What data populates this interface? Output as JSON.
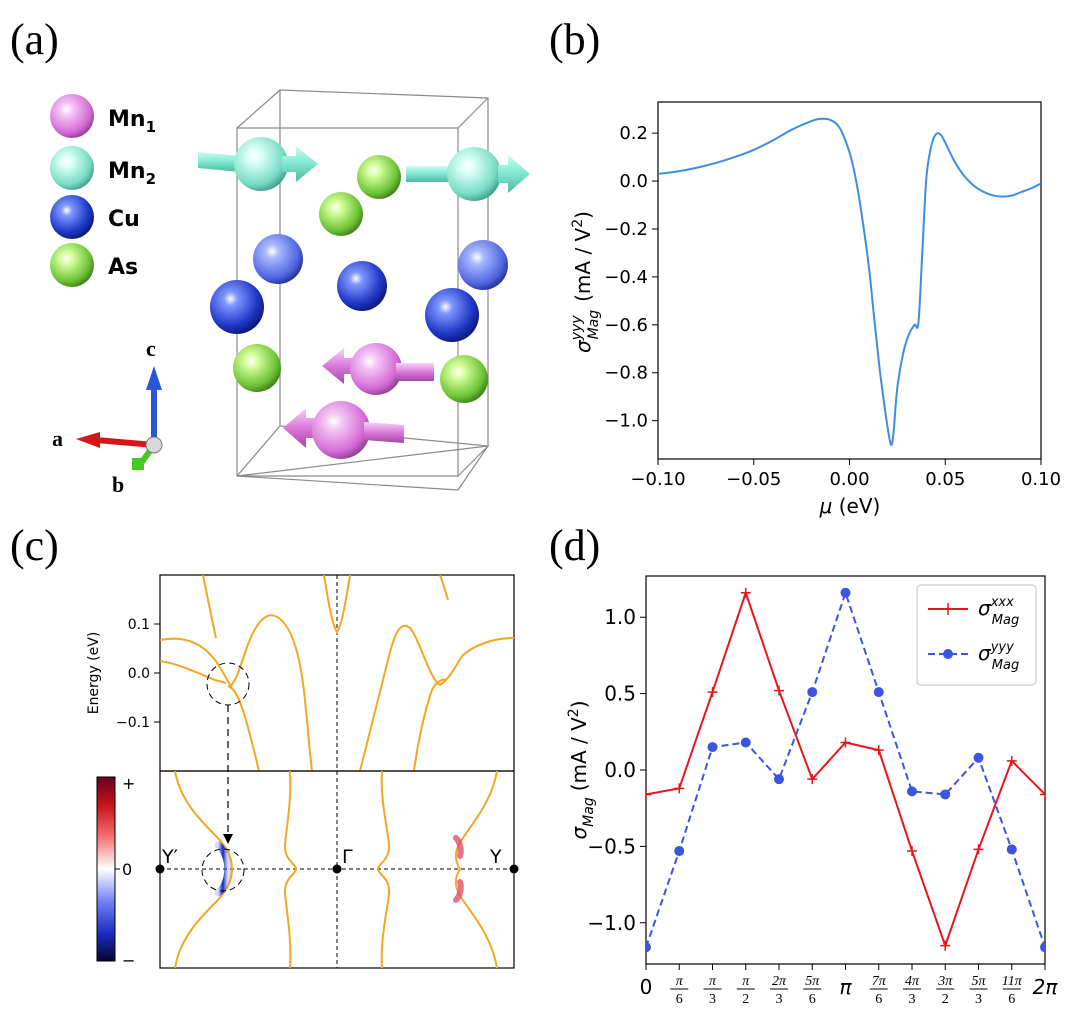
{
  "panels": {
    "a": {
      "label": "(a)",
      "legend": [
        {
          "name": "Mn",
          "sub": "1",
          "color": "#dc78dc"
        },
        {
          "name": "Mn",
          "sub": "2",
          "color": "#7fe6cf"
        },
        {
          "name": "Cu",
          "sub": "",
          "color": "#2a42d8"
        },
        {
          "name": "As",
          "sub": "",
          "color": "#6fc43a"
        }
      ],
      "axes_labels": {
        "c": "c",
        "a": "a",
        "b": "b"
      },
      "colors": {
        "mn1": "#dc78dc",
        "mn2": "#7fe6cf",
        "cu": "#2a42d8",
        "as": "#6fc43a",
        "axis_c": "#2a55d8",
        "axis_a": "#d01818",
        "axis_b": "#44cc22"
      }
    },
    "b": {
      "label": "(b)",
      "xlabel_mu": "μ",
      "xlabel_unit": " (eV)",
      "ylabel_sigma": "σ",
      "ylabel_sup": "yyy",
      "ylabel_sub": "Mag",
      "ylabel_unit": "(mA / V",
      "ylabel_unit_sup": "2",
      "ylabel_unit_close": ")"
    },
    "c": {
      "label": "(c)",
      "ylabel": "Energy (eV)",
      "yticks": [
        "0.1",
        "0.0",
        "−0.1"
      ],
      "colorbar_ticks": [
        "+",
        "0",
        "−"
      ],
      "kpoints": [
        "Y′",
        "Γ",
        "Y"
      ]
    },
    "d": {
      "label": "(d)",
      "ylabel_sigma": "σ",
      "ylabel_sub": "Mag",
      "ylabel_unit": "(mA / V",
      "ylabel_unit_sup": "2",
      "ylabel_unit_close": ")",
      "legend": [
        {
          "sigma": "σ",
          "sup": "xxx",
          "sub": "Mag",
          "color": "#e8161b"
        },
        {
          "sigma": "σ",
          "sup": "yyy",
          "sub": "Mag",
          "color": "#3a55e0"
        }
      ]
    }
  },
  "chart_data": [
    {
      "panel": "b",
      "type": "line",
      "title": "",
      "xlabel": "μ (eV)",
      "ylabel": "σ^yyy_Mag (mA / V^2)",
      "xlim": [
        -0.1,
        0.1
      ],
      "ylim": [
        -1.16,
        0.33
      ],
      "xticks": [
        -0.1,
        -0.05,
        0.0,
        0.05,
        0.1
      ],
      "xtick_labels": [
        "−0.10",
        "−0.05",
        "0.00",
        "0.05",
        "0.10"
      ],
      "yticks": [
        0.2,
        0.0,
        -0.2,
        -0.4,
        -0.6,
        -0.8,
        -1.0
      ],
      "ytick_labels": [
        "0.2",
        "0.0",
        "−0.2",
        "−0.4",
        "−0.6",
        "−0.8",
        "−1.0"
      ],
      "color": "#3b8fde",
      "series": [
        {
          "name": "σ^yyy_Mag",
          "x": [
            -0.1,
            -0.09,
            -0.08,
            -0.07,
            -0.06,
            -0.05,
            -0.04,
            -0.03,
            -0.02,
            -0.015,
            -0.01,
            -0.005,
            0.0,
            0.003,
            0.006,
            0.01,
            0.013,
            0.016,
            0.019,
            0.021,
            0.022,
            0.023,
            0.025,
            0.028,
            0.031,
            0.034,
            0.036,
            0.038,
            0.04,
            0.042,
            0.044,
            0.046,
            0.048,
            0.05,
            0.055,
            0.06,
            0.065,
            0.07,
            0.075,
            0.08,
            0.085,
            0.09,
            0.095,
            0.1
          ],
          "y": [
            0.03,
            0.04,
            0.055,
            0.075,
            0.1,
            0.13,
            0.17,
            0.215,
            0.25,
            0.26,
            0.255,
            0.22,
            0.12,
            0.02,
            -0.12,
            -0.35,
            -0.58,
            -0.8,
            -0.98,
            -1.08,
            -1.1,
            -1.05,
            -0.86,
            -0.72,
            -0.64,
            -0.6,
            -0.59,
            -0.3,
            0.0,
            0.12,
            0.18,
            0.2,
            0.19,
            0.16,
            0.08,
            0.02,
            -0.02,
            -0.045,
            -0.06,
            -0.065,
            -0.06,
            -0.045,
            -0.03,
            -0.01
          ]
        }
      ]
    },
    {
      "panel": "d",
      "type": "line",
      "title": "",
      "xlabel": "",
      "ylabel": "σ_Mag (mA / V^2)",
      "xlim": [
        0,
        12
      ],
      "ylim": [
        -1.27,
        1.27
      ],
      "categories": [
        "0",
        "π/6",
        "π/3",
        "π/2",
        "2π/3",
        "5π/6",
        "π",
        "7π/6",
        "4π/3",
        "3π/2",
        "5π/3",
        "11π/6",
        "2π"
      ],
      "yticks": [
        1.0,
        0.5,
        0.0,
        -0.5,
        -1.0
      ],
      "ytick_labels": [
        "1.0",
        "0.5",
        "0.0",
        "−0.5",
        "−1.0"
      ],
      "legend": "top-right",
      "series": [
        {
          "name": "σ^xxx_Mag",
          "color": "#e8161b",
          "style": "solid",
          "marker": "+",
          "values": [
            -0.16,
            -0.12,
            0.51,
            1.16,
            0.52,
            -0.06,
            0.18,
            0.13,
            -0.53,
            -1.15,
            -0.52,
            0.06,
            -0.16
          ]
        },
        {
          "name": "σ^yyy_Mag",
          "color": "#3a55e0",
          "style": "dashed",
          "marker": "o",
          "values": [
            -1.16,
            -0.53,
            0.15,
            0.18,
            -0.06,
            0.51,
            1.16,
            0.51,
            -0.14,
            -0.16,
            0.08,
            -0.52,
            -1.16
          ]
        }
      ]
    }
  ]
}
